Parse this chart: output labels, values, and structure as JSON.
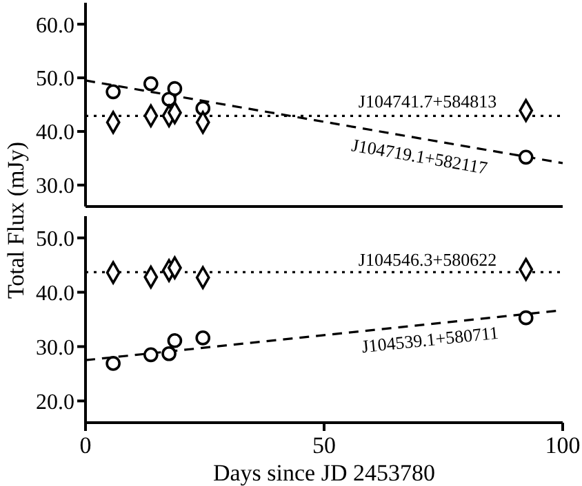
{
  "chart_data": [
    {
      "type": "scatter",
      "ylabel": "Total Flux (mJy)",
      "xlim": [
        0,
        100
      ],
      "xticks": [
        0,
        50,
        100
      ],
      "ylim": [
        26,
        64
      ],
      "yticks": [
        {
          "value": 30,
          "label": "30.0"
        },
        {
          "value": 40,
          "label": "40.0"
        },
        {
          "value": 50,
          "label": "50.0"
        },
        {
          "value": 60,
          "label": "60.0"
        }
      ],
      "tick_labels": "y",
      "grid": false,
      "legend": false,
      "series": [
        {
          "type": "scatter",
          "marker": "circle",
          "color": "#000000",
          "x": [
            5.8,
            13.7,
            17.5,
            18.7,
            24.6,
            92.3
          ],
          "values": [
            47.4,
            48.9,
            46.0,
            48.0,
            44.3,
            35.2
          ]
        },
        {
          "type": "scatter",
          "marker": "diamond",
          "color": "#000000",
          "x": [
            5.8,
            13.7,
            17.5,
            18.7,
            24.6,
            92.3
          ],
          "values": [
            41.7,
            42.9,
            42.9,
            43.5,
            41.7,
            43.9
          ]
        },
        {
          "type": "line",
          "line_style": "dashed",
          "marker": "none",
          "color": "#000000",
          "x": [
            0,
            100
          ],
          "values": [
            49.5,
            34.1
          ]
        },
        {
          "type": "line",
          "line_style": "dotted",
          "marker": "none",
          "color": "#000000",
          "x": [
            0,
            100
          ],
          "values": [
            42.9,
            42.9
          ]
        }
      ],
      "annotations": [
        "J104741.7+584813",
        "J104719.1+582117"
      ]
    },
    {
      "type": "scatter",
      "xlabel": "Days since JD 2453780",
      "xlim": [
        0,
        100
      ],
      "xticks": [
        0,
        50,
        100
      ],
      "ylim": [
        16,
        54
      ],
      "yticks": [
        {
          "value": 20,
          "label": "20.0"
        },
        {
          "value": 30,
          "label": "30.0"
        },
        {
          "value": 40,
          "label": "40.0"
        },
        {
          "value": 50,
          "label": "50.0"
        }
      ],
      "grid": false,
      "legend": false,
      "series": [
        {
          "type": "scatter",
          "marker": "diamond",
          "color": "#000000",
          "x": [
            5.8,
            13.7,
            17.5,
            18.7,
            24.6,
            92.3
          ],
          "values": [
            43.6,
            42.8,
            44.0,
            44.5,
            42.7,
            44.2
          ]
        },
        {
          "type": "scatter",
          "marker": "circle",
          "color": "#000000",
          "x": [
            5.8,
            13.7,
            17.5,
            18.7,
            24.6,
            92.3
          ],
          "values": [
            26.9,
            28.5,
            28.7,
            31.1,
            31.6,
            35.3
          ]
        },
        {
          "type": "line",
          "line_style": "dashed",
          "marker": "none",
          "color": "#000000",
          "x": [
            0,
            100
          ],
          "values": [
            27.5,
            36.7
          ]
        },
        {
          "type": "line",
          "line_style": "dotted",
          "marker": "none",
          "color": "#000000",
          "x": [
            0,
            100
          ],
          "values": [
            43.7,
            43.7
          ]
        }
      ],
      "annotations": [
        "J104546.3+580622",
        "J104539.1+580711"
      ]
    }
  ]
}
